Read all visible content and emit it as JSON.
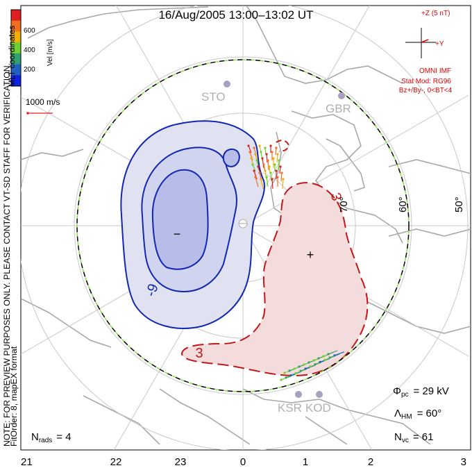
{
  "title": "16/Aug/2005 13:00–13:02 UT",
  "legend": {
    "ticks": [
      "600",
      "400",
      "200"
    ],
    "axis_label": "Vel [m/s]",
    "colors": [
      "#e02020",
      "#f07020",
      "#f0b000",
      "#70d030",
      "#30a070",
      "#2060c0",
      "#1020e0"
    ],
    "coord_label": "MLT coordinates",
    "scale_label": "1000 m/s"
  },
  "imf": {
    "z_label": "+Z (5 nT)",
    "y_label": "+Y",
    "source": "OMNI IMF",
    "model": "Stat Mod: RG96",
    "condition": "Bz+/By-, 0<BT<4",
    "color": "#e00000"
  },
  "note": "NOTE: FOR PREVIEW PURPOSES ONLY. PLEASE CONTACT VT-SD STAFF FOR VERIFICATION.",
  "fit_order": "FitOrder: 8, mapEX format",
  "stations": [
    "STO",
    "GBR",
    "KSR",
    "KOD"
  ],
  "lat_labels": [
    "70°",
    "60°",
    "50°"
  ],
  "contour_labels": {
    "neg": "-9",
    "pos_top": "3",
    "pos_bottom": "3"
  },
  "cell_signs": {
    "minus": "−",
    "plus": "+"
  },
  "stats": {
    "n_rads": "N",
    "n_rads_sub": "rads",
    "n_rads_val": "= 4",
    "phi": "Φ",
    "phi_sub": "pc",
    "phi_val": "= 29 kV",
    "lambda": "Λ",
    "lambda_sub": "HM",
    "lambda_val": "= 60°",
    "nvc": "N",
    "nvc_sub": "vc",
    "nvc_val": "= 61"
  },
  "mlt_ticks": [
    "21",
    "22",
    "23",
    "0",
    "1",
    "2",
    "3"
  ]
}
